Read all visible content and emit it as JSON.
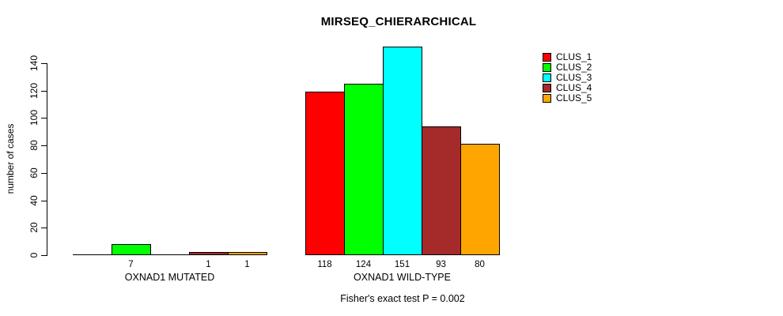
{
  "chart_data": {
    "type": "bar",
    "title": "MIRSEQ_CHIERARCHICAL",
    "ylabel": "number of cases",
    "xlabel": "",
    "footer": "Fisher's exact test P = 0.002",
    "ylim": [
      0,
      151
    ],
    "yticks": [
      0,
      20,
      40,
      60,
      80,
      100,
      120,
      140
    ],
    "grid": false,
    "legend_position": "top-right",
    "categories": [
      "OXNAD1 MUTATED",
      "OXNAD1 WILD-TYPE"
    ],
    "series": [
      {
        "name": "CLUS_1",
        "color": "#FF0000",
        "values": [
          0,
          118
        ]
      },
      {
        "name": "CLUS_2",
        "color": "#00FF00",
        "values": [
          7,
          124
        ]
      },
      {
        "name": "CLUS_3",
        "color": "#00FFFF",
        "values": [
          0,
          151
        ]
      },
      {
        "name": "CLUS_4",
        "color": "#A52A2A",
        "values": [
          1,
          93
        ]
      },
      {
        "name": "CLUS_5",
        "color": "#FFA500",
        "values": [
          1,
          80
        ]
      }
    ],
    "bar_value_labels": [
      [
        "",
        "7",
        "",
        "1",
        "1"
      ],
      [
        "118",
        "124",
        "151",
        "93",
        "80"
      ]
    ]
  },
  "colors": {
    "background": "#FFFFFF",
    "axis": "#000000",
    "text": "#000000"
  }
}
